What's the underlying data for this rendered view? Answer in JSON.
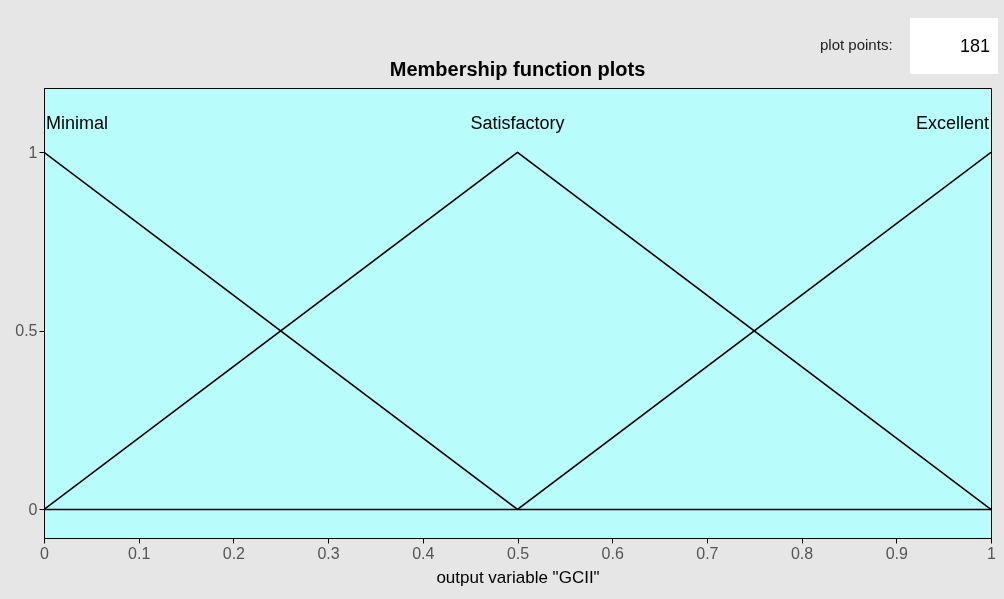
{
  "chart_data": {
    "type": "line",
    "title": "Membership function plots",
    "xlabel": "output variable \"GCII\"",
    "annotations": [
      "plot points:",
      "181"
    ],
    "series": [
      {
        "name": "Minimal",
        "color": "#000000",
        "x": [
          0,
          0.5,
          1
        ],
        "values": [
          1,
          0,
          0
        ]
      },
      {
        "name": "Satisfactory",
        "color": "#000000",
        "x": [
          0,
          0.5,
          1
        ],
        "values": [
          0,
          1,
          0
        ]
      },
      {
        "name": "Excellent",
        "color": "#000000",
        "x": [
          0,
          0.5,
          1
        ],
        "values": [
          0,
          0,
          1
        ]
      }
    ],
    "xlim": [
      0,
      1
    ],
    "ylim": [
      -0.08,
      1.18
    ],
    "xticks": [
      0,
      0.1,
      0.2,
      0.3,
      0.4,
      0.5,
      0.6,
      0.7,
      0.8,
      0.9,
      1
    ],
    "yticks": [
      0,
      0.5,
      1
    ],
    "grid": false,
    "legend": false,
    "marker": "none",
    "line_style": "solid"
  }
}
